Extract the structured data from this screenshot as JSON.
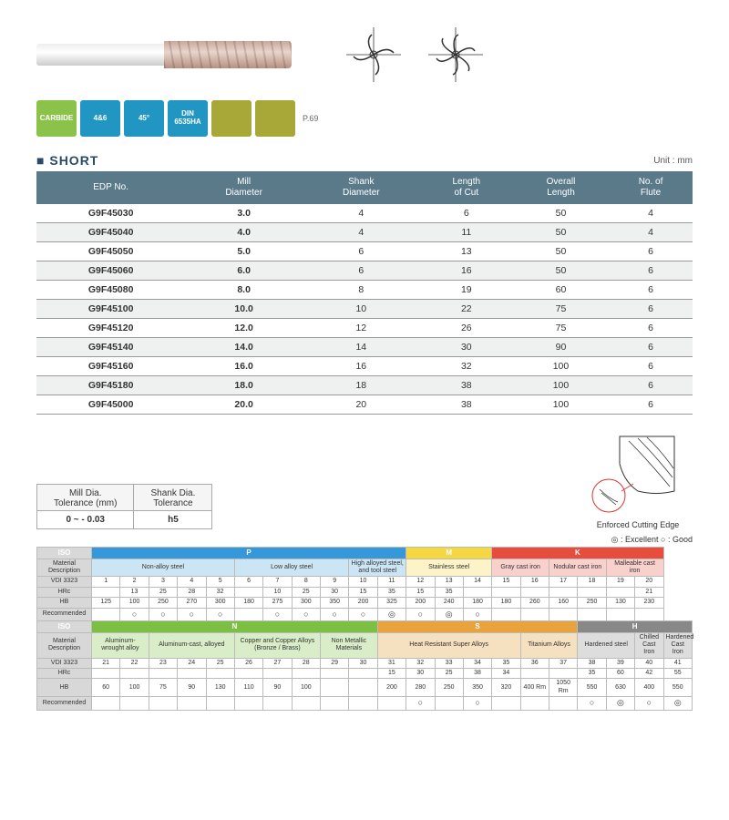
{
  "section_title": "SHORT",
  "unit_label": "Unit : mm",
  "page_ref": "P.69",
  "badges": [
    {
      "label": "CARBIDE",
      "cls": "b-green"
    },
    {
      "label": "4&6",
      "cls": "b-blue"
    },
    {
      "label": "45°",
      "cls": "b-blue"
    },
    {
      "label": "DIN 6535HA",
      "cls": "b-blue"
    },
    {
      "label": "",
      "cls": "b-olive"
    },
    {
      "label": "",
      "cls": "b-olive"
    }
  ],
  "main_headers": [
    "EDP No.",
    "Mill\nDiameter",
    "Shank\nDiameter",
    "Length\nof Cut",
    "Overall\nLength",
    "No. of\nFlute"
  ],
  "main_rows": [
    [
      "G9F45030",
      "3.0",
      "4",
      "6",
      "50",
      "4"
    ],
    [
      "G9F45040",
      "4.0",
      "4",
      "11",
      "50",
      "4"
    ],
    [
      "G9F45050",
      "5.0",
      "6",
      "13",
      "50",
      "6"
    ],
    [
      "G9F45060",
      "6.0",
      "6",
      "16",
      "50",
      "6"
    ],
    [
      "G9F45080",
      "8.0",
      "8",
      "19",
      "60",
      "6"
    ],
    [
      "G9F45100",
      "10.0",
      "10",
      "22",
      "75",
      "6"
    ],
    [
      "G9F45120",
      "12.0",
      "12",
      "26",
      "75",
      "6"
    ],
    [
      "G9F45140",
      "14.0",
      "14",
      "30",
      "90",
      "6"
    ],
    [
      "G9F45160",
      "16.0",
      "16",
      "32",
      "100",
      "6"
    ],
    [
      "G9F45180",
      "18.0",
      "18",
      "38",
      "100",
      "6"
    ],
    [
      "G9F45000",
      "20.0",
      "20",
      "38",
      "100",
      "6"
    ]
  ],
  "tolerance": {
    "mill_label": "Mill Dia.\nTolerance (mm)",
    "mill_value": "0 ~ - 0.03",
    "shank_label": "Shank Dia.\nTolerance",
    "shank_value": "h5"
  },
  "edge_label": "Enforced Cutting Edge",
  "legend": "◎ : Excellent   ○ : Good",
  "iso_groups_1": [
    {
      "code": "P",
      "cls": "iso-P",
      "span": 11
    },
    {
      "code": "M",
      "cls": "iso-M",
      "span": 3
    },
    {
      "code": "K",
      "cls": "iso-K",
      "span": 6
    }
  ],
  "mat_desc_1": [
    {
      "t": "Non-alloy steel",
      "cls": "grp-P",
      "span": 5
    },
    {
      "t": "Low alloy steel",
      "cls": "grp-P",
      "span": 4
    },
    {
      "t": "High alloyed steel, and tool steel",
      "cls": "grp-P",
      "span": 2
    },
    {
      "t": "Stainless steel",
      "cls": "grp-M",
      "span": 3
    },
    {
      "t": "Gray cast iron",
      "cls": "grp-K",
      "span": 2
    },
    {
      "t": "Nodular cast iron",
      "cls": "grp-K",
      "span": 2
    },
    {
      "t": "Malleable cast iron",
      "cls": "grp-K",
      "span": 2
    }
  ],
  "vdi_1": [
    "1",
    "2",
    "3",
    "4",
    "5",
    "6",
    "7",
    "8",
    "9",
    "10",
    "11",
    "12",
    "13",
    "14",
    "15",
    "16",
    "17",
    "18",
    "19",
    "20"
  ],
  "hrc_1": [
    "",
    "13",
    "25",
    "28",
    "32",
    "",
    "10",
    "25",
    "30",
    "15",
    "35",
    "15",
    "35",
    "",
    "",
    "",
    "",
    "",
    "",
    "21"
  ],
  "hb_1": [
    "125",
    "100",
    "250",
    "270",
    "300",
    "180",
    "275",
    "300",
    "350",
    "200",
    "325",
    "200",
    "240",
    "180",
    "180",
    "260",
    "160",
    "250",
    "130",
    "230"
  ],
  "rec_1": [
    "",
    "○",
    "○",
    "○",
    "○",
    "",
    "○",
    "○",
    "○",
    "○",
    "◎",
    "○",
    "◎",
    "○",
    "",
    "",
    "",
    "",
    "",
    ""
  ],
  "iso_groups_2": [
    {
      "code": "N",
      "cls": "iso-N",
      "span": 10
    },
    {
      "code": "S",
      "cls": "iso-S",
      "span": 7
    },
    {
      "code": "H",
      "cls": "iso-H",
      "span": 4
    }
  ],
  "mat_desc_2": [
    {
      "t": "Aluminum-wrought alloy",
      "cls": "grp-N",
      "span": 2
    },
    {
      "t": "Aluminum-cast, alloyed",
      "cls": "grp-N",
      "span": 3
    },
    {
      "t": "Copper and Copper Alloys (Bronze / Brass)",
      "cls": "grp-N",
      "span": 3
    },
    {
      "t": "Non Metallic Materials",
      "cls": "grp-N",
      "span": 2
    },
    {
      "t": "Heat Resistant Super Alloys",
      "cls": "grp-S",
      "span": 5
    },
    {
      "t": "Titanium Alloys",
      "cls": "grp-S",
      "span": 2
    },
    {
      "t": "Hardened steel",
      "cls": "grp-H",
      "span": 2
    },
    {
      "t": "Chilled Cast Iron",
      "cls": "grp-H",
      "span": 1
    },
    {
      "t": "Hardened Cast Iron",
      "cls": "grp-H",
      "span": 1
    }
  ],
  "vdi_2": [
    "21",
    "22",
    "23",
    "24",
    "25",
    "26",
    "27",
    "28",
    "29",
    "30",
    "31",
    "32",
    "33",
    "34",
    "35",
    "36",
    "37",
    "38",
    "39",
    "40",
    "41"
  ],
  "hrc_2": [
    "",
    "",
    "",
    "",
    "",
    "",
    "",
    "",
    "",
    "",
    "15",
    "30",
    "25",
    "38",
    "34",
    "",
    "",
    "35",
    "60",
    "42",
    "55"
  ],
  "hb_2": [
    "60",
    "100",
    "75",
    "90",
    "130",
    "110",
    "90",
    "100",
    "",
    "",
    "200",
    "280",
    "250",
    "350",
    "320",
    "400 Rm",
    "1050 Rm",
    "550",
    "630",
    "400",
    "550"
  ],
  "rec_2": [
    "",
    "",
    "",
    "",
    "",
    "",
    "",
    "",
    "",
    "",
    "",
    "○",
    "",
    "○",
    "",
    "",
    "",
    "○",
    "◎",
    "○",
    "◎"
  ],
  "row_labels": {
    "iso": "ISO",
    "mat": "Material Description",
    "vdi": "VDI 3323",
    "hrc": "HRc",
    "hb": "HB",
    "rec": "Recommended"
  }
}
